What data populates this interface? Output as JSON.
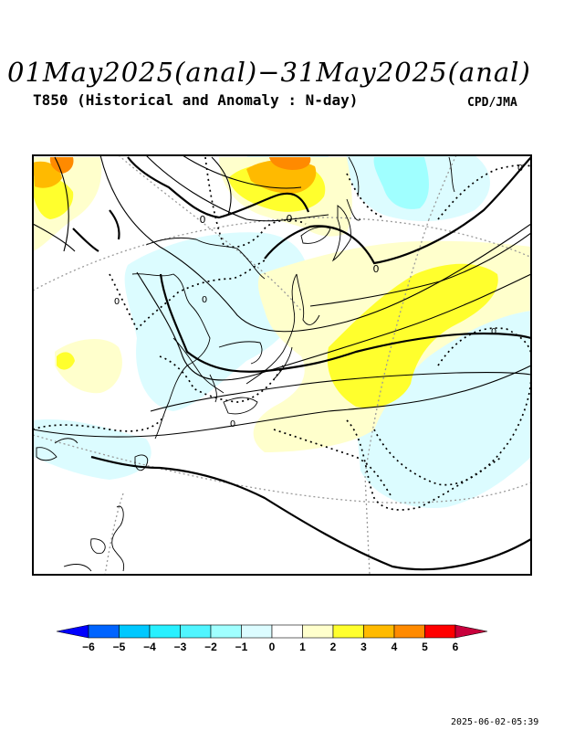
{
  "header": {
    "title": "01May2025(anal)−31May2025(anal)",
    "subtitle": "T850 (Historical and Anomaly : N-day)",
    "credit": "CPD/JMA"
  },
  "footer": {
    "timestamp": "2025-06-02-05:39"
  },
  "map": {
    "contour_labels": [
      "0",
      "0",
      "0",
      "0",
      "0",
      "0",
      "0",
      "0"
    ],
    "anomaly_colors": {
      "neg2": "#a0ffff",
      "neg1": "#dcfcff",
      "pos1": "#ffffcc",
      "pos2": "#ffff2d",
      "pos3": "#ffba00",
      "pos4": "#ff8a00"
    }
  },
  "colorbar": {
    "ticks": [
      "−6",
      "−5",
      "−4",
      "−3",
      "−2",
      "−1",
      "0",
      "1",
      "2",
      "3",
      "4",
      "5",
      "6"
    ],
    "colors": [
      "#0000ff",
      "#0064ff",
      "#00c8ff",
      "#28f0ff",
      "#50f5ff",
      "#a0ffff",
      "#dcfcff",
      "#ffffff",
      "#ffffcc",
      "#ffff2d",
      "#ffba00",
      "#ff8a00",
      "#ff0000",
      "#c8003c"
    ]
  }
}
